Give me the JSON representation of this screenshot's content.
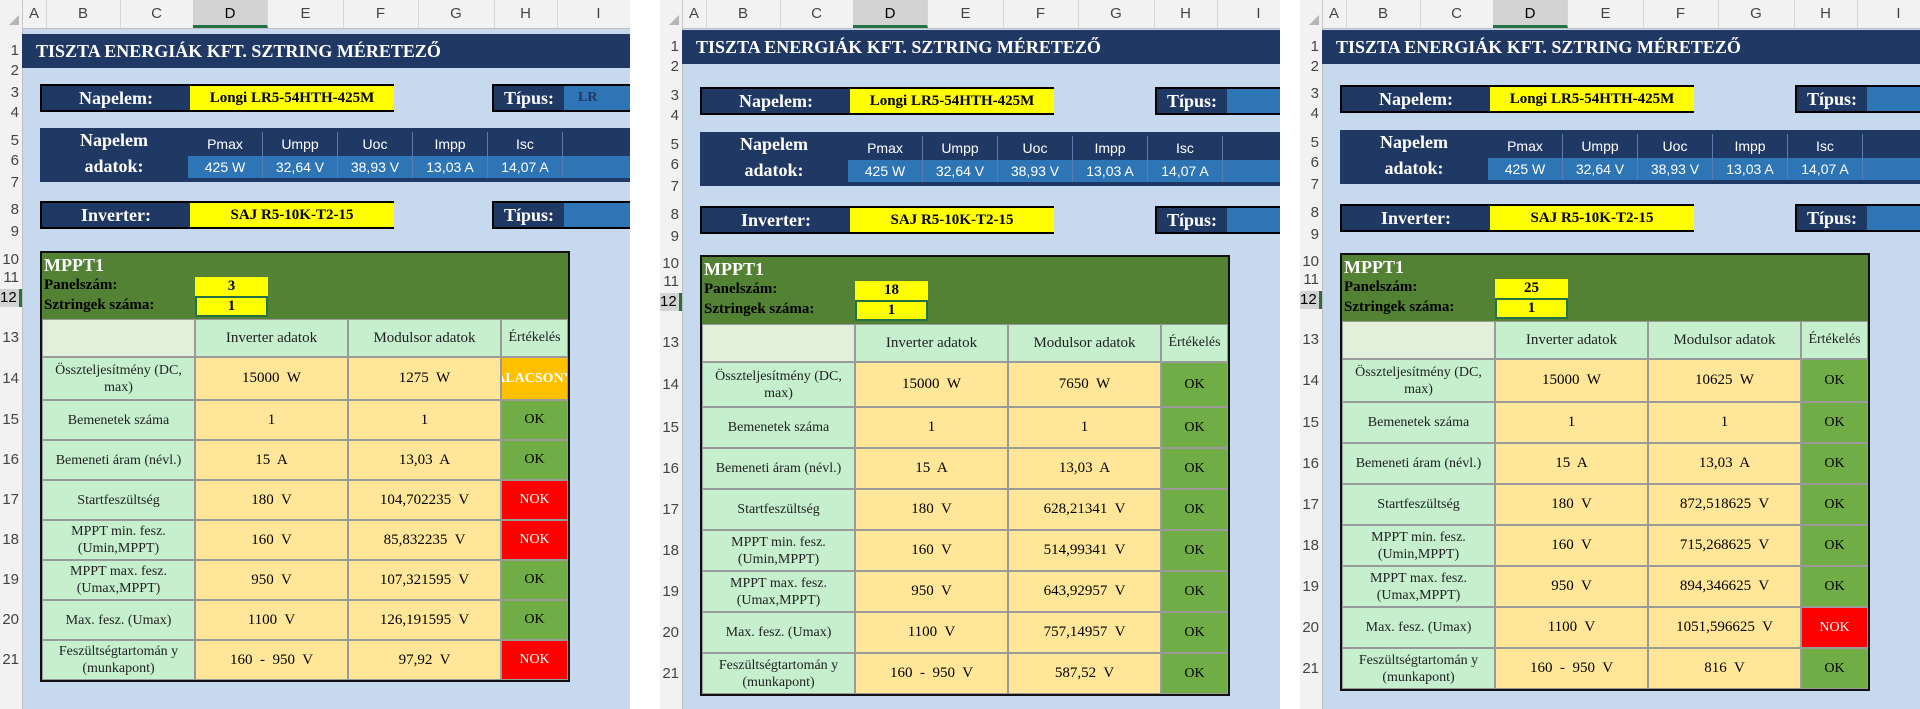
{
  "columns": [
    "A",
    "B",
    "C",
    "D",
    "E",
    "F",
    "G",
    "H",
    "I"
  ],
  "selected_column": "D",
  "title": "TISZTA ENERGIÁK KFT. SZTRING MÉRETEZŐ",
  "napelem": {
    "label": "Napelem:",
    "value": "Longi LR5-54HTH-425M"
  },
  "inverter": {
    "label": "Inverter:",
    "value": "SAJ R5-10K-T2-15"
  },
  "tipus_label": "Típus:",
  "tipus_partial": "LR",
  "napelem_adatok": {
    "label_line1": "Napelem",
    "label_line2": "adatok:",
    "headers": [
      "Pmax",
      "Umpp",
      "Uoc",
      "Impp",
      "Isc"
    ],
    "values": [
      "425 W",
      "32,64 V",
      "38,93 V",
      "13,03 A",
      "14,07 A"
    ]
  },
  "mppt_title": "MPPT1",
  "panelszam_label": "Panelszám:",
  "sztringek_label": "Sztringek száma:",
  "table_headers": {
    "inverter": "Inverter adatok",
    "modulsor": "Modulsor adatok",
    "ertekeles": "Értékelés"
  },
  "row_labels": [
    "Összteljesítmény (DC, max)",
    "Bemenetek száma",
    "Bemeneti áram (névl.)",
    "Startfeszültség",
    "MPPT min. fesz. (Umin,MPPT)",
    "MPPT max. fesz. (Umax,MPPT)",
    "Max. fesz. (Umax)",
    "Feszültségtartomán y (munkapont)"
  ],
  "inverter_values": [
    "15000  W",
    "1",
    "15  A",
    "180  V",
    "160  V",
    "950  V",
    "1100  V",
    "160  -  950  V"
  ],
  "panels": [
    {
      "panelszam": "3",
      "sztringek": "1",
      "modulsor": [
        "1275  W",
        "1",
        "13,03  A",
        "104,702235  V",
        "85,832235  V",
        "107,321595  V",
        "126,191595  V",
        "97,92  V"
      ],
      "ertekeles": [
        "ALACSONY",
        "OK",
        "OK",
        "NOK",
        "NOK",
        "OK",
        "OK",
        "NOK"
      ],
      "status_colors": [
        "alac",
        "ok",
        "ok",
        "nok",
        "nok",
        "ok",
        "ok",
        "nok"
      ]
    },
    {
      "panelszam": "18",
      "sztringek": "1",
      "modulsor": [
        "7650  W",
        "1",
        "13,03  A",
        "628,21341  V",
        "514,99341  V",
        "643,92957  V",
        "757,14957  V",
        "587,52  V"
      ],
      "ertekeles": [
        "OK",
        "OK",
        "OK",
        "OK",
        "OK",
        "OK",
        "OK",
        "OK"
      ],
      "status_colors": [
        "ok",
        "ok",
        "ok",
        "ok",
        "ok",
        "ok",
        "ok",
        "ok"
      ]
    },
    {
      "panelszam": "25",
      "sztringek": "1",
      "modulsor": [
        "10625  W",
        "1",
        "13,03  A",
        "872,518625  V",
        "715,268625  V",
        "894,346625  V",
        "1051,596625  V",
        "816  V"
      ],
      "ertekeles": [
        "OK",
        "OK",
        "OK",
        "OK",
        "OK",
        "OK",
        "NOK",
        "OK"
      ],
      "status_colors": [
        "ok",
        "ok",
        "ok",
        "ok",
        "ok",
        "ok",
        "nok",
        "ok"
      ]
    }
  ],
  "colors": {
    "dark_blue": "#203864",
    "green": "#548235",
    "ok": "#70ad47",
    "nok": "#ff0000",
    "alacsony": "#ffc000",
    "yellow": "#ffff00"
  }
}
